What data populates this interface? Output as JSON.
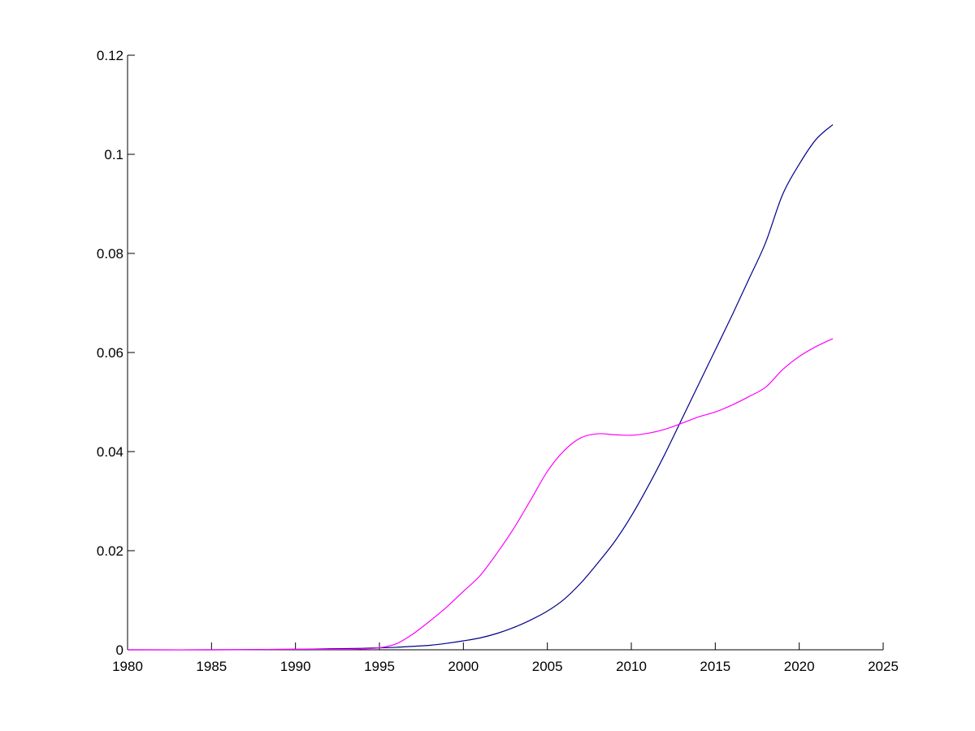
{
  "chart_data": {
    "type": "line",
    "title": "",
    "xlabel": "",
    "ylabel": "",
    "xlim": [
      1980,
      2025
    ],
    "ylim": [
      0,
      0.12
    ],
    "grid": false,
    "x_ticks": [
      1980,
      1985,
      1990,
      1995,
      2000,
      2005,
      2010,
      2015,
      2020,
      2025
    ],
    "y_ticks": [
      0,
      0.02,
      0.04,
      0.06,
      0.08,
      0.1,
      0.12
    ],
    "x_tick_labels": [
      "1980",
      "1985",
      "1990",
      "1995",
      "2000",
      "2005",
      "2010",
      "2015",
      "2020",
      "2025"
    ],
    "y_tick_labels": [
      "0",
      "0.02",
      "0.04",
      "0.06",
      "0.08",
      "0.1",
      "0.12"
    ],
    "series": [
      {
        "color": "#00008b",
        "x": [
          1980,
          1985,
          1990,
          1992,
          1994,
          1995,
          1996,
          1997,
          1998,
          1999,
          2000,
          2001,
          2002,
          2003,
          2004,
          2005,
          2006,
          2007,
          2008,
          2009,
          2010,
          2011,
          2012,
          2013,
          2014,
          2015,
          2016,
          2017,
          2018,
          2019,
          2020,
          2021,
          2022
        ],
        "values": [
          0,
          0,
          0.0001,
          0.0002,
          0.0003,
          0.0004,
          0.0005,
          0.0007,
          0.0009,
          0.0013,
          0.0018,
          0.0024,
          0.0033,
          0.0045,
          0.006,
          0.0078,
          0.0102,
          0.0135,
          0.0175,
          0.0218,
          0.027,
          0.033,
          0.0395,
          0.0465,
          0.0535,
          0.0605,
          0.0675,
          0.0748,
          0.0822,
          0.0918,
          0.098,
          0.103,
          0.106
        ]
      },
      {
        "color": "#ff00ff",
        "x": [
          1980,
          1985,
          1990,
          1993,
          1994,
          1995,
          1996,
          1997,
          1998,
          1999,
          2000,
          2001,
          2002,
          2003,
          2004,
          2005,
          2006,
          2007,
          2008,
          2009,
          2010,
          2011,
          2012,
          2013,
          2014,
          2015,
          2016,
          2017,
          2018,
          2019,
          2020,
          2021,
          2022
        ],
        "values": [
          0,
          0,
          0.0001,
          0.0001,
          0.0002,
          0.0004,
          0.0012,
          0.0032,
          0.0058,
          0.0086,
          0.0118,
          0.015,
          0.0195,
          0.0245,
          0.0302,
          0.036,
          0.0402,
          0.0428,
          0.0436,
          0.0434,
          0.0433,
          0.0437,
          0.0445,
          0.0457,
          0.047,
          0.048,
          0.0494,
          0.0511,
          0.053,
          0.0565,
          0.0592,
          0.0612,
          0.0628
        ]
      }
    ]
  }
}
